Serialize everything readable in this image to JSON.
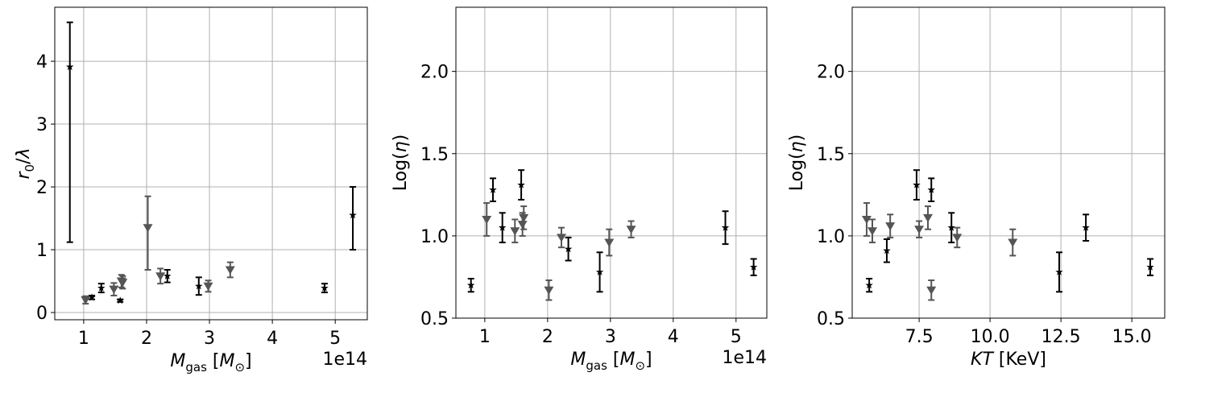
{
  "chart_data": [
    {
      "type": "errorbar",
      "xlabel": [
        {
          "text": "M",
          "style": "italic"
        },
        {
          "text": "gas",
          "style": "sub"
        },
        {
          "text": "  [",
          "style": "normal"
        },
        {
          "text": "M",
          "style": "italic"
        },
        {
          "text": "⊙",
          "style": "sub"
        },
        {
          "text": "]",
          "style": "normal"
        }
      ],
      "ylabel": [
        {
          "text": "r",
          "style": "italic"
        },
        {
          "text": "0",
          "style": "sub"
        },
        {
          "text": "/",
          "style": "normal"
        },
        {
          "text": "λ",
          "style": "italic"
        }
      ],
      "x_offset_label": "1e14",
      "xlim": [
        0.54,
        5.51
      ],
      "ylim": [
        -0.115,
        4.86
      ],
      "xticks": [
        1,
        2,
        3,
        4,
        5
      ],
      "yticks": [
        0,
        1,
        2,
        3,
        4
      ],
      "grid": true,
      "series": [
        {
          "color": "#000000",
          "marker": "star",
          "x": [
            0.78,
            1.13,
            1.28,
            1.58,
            2.33,
            2.83,
            4.83,
            5.28
          ],
          "values": [
            3.91,
            0.24,
            0.39,
            0.19,
            0.58,
            0.42,
            0.39,
            1.55
          ],
          "err_low": [
            2.79,
            0.03,
            0.07,
            0.02,
            0.1,
            0.14,
            0.07,
            0.55
          ],
          "err_high": [
            0.71,
            0.03,
            0.07,
            0.02,
            0.1,
            0.14,
            0.07,
            0.45
          ]
        },
        {
          "color": "#555555",
          "marker": "triangle-down",
          "x": [
            1.03,
            1.48,
            1.6,
            1.62,
            2.02,
            2.22,
            2.98,
            3.33
          ],
          "values": [
            0.2,
            0.37,
            0.5,
            0.48,
            1.35,
            0.58,
            0.42,
            0.68
          ],
          "err_low": [
            0.06,
            0.1,
            0.1,
            0.1,
            0.67,
            0.12,
            0.09,
            0.12
          ],
          "err_high": [
            0.06,
            0.1,
            0.1,
            0.1,
            0.5,
            0.12,
            0.09,
            0.12
          ]
        }
      ]
    },
    {
      "type": "errorbar",
      "xlabel": [
        {
          "text": "M",
          "style": "italic"
        },
        {
          "text": "gas",
          "style": "sub"
        },
        {
          "text": "  [",
          "style": "normal"
        },
        {
          "text": "M",
          "style": "italic"
        },
        {
          "text": "⊙",
          "style": "sub"
        },
        {
          "text": "]",
          "style": "normal"
        }
      ],
      "ylabel": [
        {
          "text": "Log(",
          "style": "normal"
        },
        {
          "text": "η",
          "style": "italic"
        },
        {
          "text": ")",
          "style": "normal"
        }
      ],
      "x_offset_label": "1e14",
      "xlim": [
        0.54,
        5.49
      ],
      "ylim": [
        0.5,
        2.39
      ],
      "xticks": [
        1,
        2,
        3,
        4,
        5
      ],
      "yticks": [
        0.5,
        {
          "value": 1,
          "label": "1.0"
        },
        1.5,
        {
          "value": 2,
          "label": "2.0"
        }
      ],
      "grid": true,
      "series": [
        {
          "color": "#000000",
          "marker": "star",
          "x": [
            0.78,
            1.13,
            1.28,
            1.58,
            2.33,
            2.83,
            4.83,
            5.28
          ],
          "values": [
            0.7,
            1.28,
            1.05,
            1.31,
            0.92,
            0.78,
            1.05,
            0.81
          ],
          "err_low": [
            0.04,
            0.07,
            0.09,
            0.09,
            0.07,
            0.12,
            0.1,
            0.05
          ],
          "err_high": [
            0.04,
            0.07,
            0.09,
            0.09,
            0.07,
            0.12,
            0.1,
            0.05
          ]
        },
        {
          "color": "#555555",
          "marker": "triangle-down",
          "x": [
            1.03,
            1.48,
            1.6,
            1.62,
            2.02,
            2.22,
            2.98,
            3.33
          ],
          "values": [
            1.1,
            1.03,
            1.07,
            1.11,
            0.67,
            0.99,
            0.96,
            1.04
          ],
          "err_low": [
            0.1,
            0.07,
            0.07,
            0.07,
            0.06,
            0.06,
            0.08,
            0.05
          ],
          "err_high": [
            0.1,
            0.07,
            0.07,
            0.07,
            0.06,
            0.06,
            0.08,
            0.05
          ]
        }
      ]
    },
    {
      "type": "errorbar",
      "xlabel": [
        {
          "text": "KT",
          "style": "italic"
        },
        {
          "text": " [KeV]",
          "style": "normal"
        }
      ],
      "ylabel": [
        {
          "text": "Log(",
          "style": "normal"
        },
        {
          "text": "η",
          "style": "italic"
        },
        {
          "text": ")",
          "style": "normal"
        }
      ],
      "xlim": [
        5.14,
        16.16
      ],
      "ylim": [
        0.5,
        2.39
      ],
      "xticks": [
        7.5,
        {
          "value": 10,
          "label": "10.0"
        },
        12.5,
        {
          "value": 15,
          "label": "15.0"
        }
      ],
      "yticks": [
        0.5,
        {
          "value": 1,
          "label": "1.0"
        },
        1.5,
        {
          "value": 2,
          "label": "2.0"
        }
      ],
      "grid": true,
      "series": [
        {
          "color": "#000000",
          "marker": "star",
          "x": [
            5.74,
            7.41,
            7.93,
            6.36,
            8.64,
            12.44,
            13.38,
            15.65
          ],
          "values": [
            0.7,
            1.31,
            1.28,
            0.91,
            1.05,
            0.78,
            1.05,
            0.81
          ],
          "err_low": [
            0.04,
            0.09,
            0.07,
            0.07,
            0.09,
            0.12,
            0.08,
            0.05
          ],
          "err_high": [
            0.04,
            0.09,
            0.07,
            0.07,
            0.09,
            0.12,
            0.08,
            0.05
          ]
        },
        {
          "color": "#555555",
          "marker": "triangle-down",
          "x": [
            5.65,
            5.85,
            6.48,
            7.5,
            7.81,
            7.93,
            8.84,
            10.8
          ],
          "values": [
            1.1,
            1.03,
            1.06,
            1.04,
            1.11,
            0.67,
            0.99,
            0.96
          ],
          "err_low": [
            0.1,
            0.07,
            0.07,
            0.05,
            0.07,
            0.06,
            0.06,
            0.08
          ],
          "err_high": [
            0.1,
            0.07,
            0.07,
            0.05,
            0.07,
            0.06,
            0.06,
            0.08
          ]
        }
      ]
    }
  ]
}
